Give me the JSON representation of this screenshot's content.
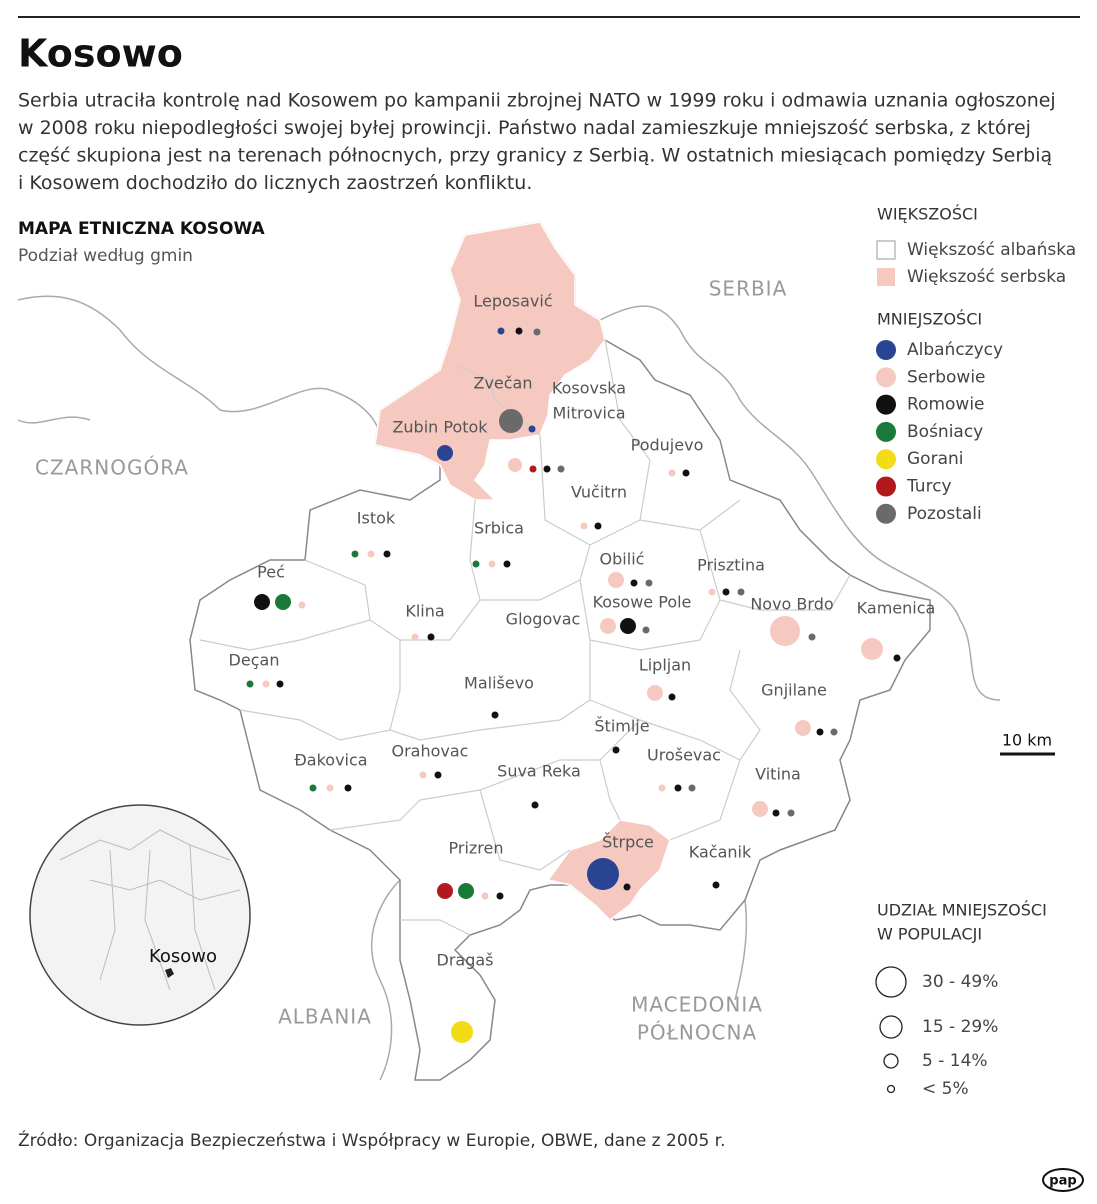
{
  "header": {
    "title": "Kosowo",
    "lead": [
      "Serbia utraciła kontrolę nad Kosowem po kampanii zbrojnej NATO w 1999 roku i odmawia uznania ogłoszonej",
      "w 2008 roku niepodległości swojej byłej prowincji. Państwo nadal zamieszkuje mniejszość serbska, z której",
      "część skupiona jest na terenach północnych, przy granicy z Serbią. W ostatnich miesiącach pomiędzy Serbią",
      "i Kosowem dochodziło do licznych zaostrzeń konfliktu."
    ]
  },
  "map": {
    "title": "MAPA ETNICZNA KOSOWA",
    "subtitle": "Podział według gmin",
    "countries": [
      [
        "SERBIA"
      ],
      [
        "CZARNOGÓRA"
      ],
      [
        "ALBANIA"
      ],
      [
        "MACEDONIA",
        "PÓŁNOCNA"
      ]
    ],
    "municipalities": [
      [
        "Leposavić"
      ],
      [
        "Zvečan"
      ],
      [
        "Kosovska",
        "Mitrovica"
      ],
      [
        "Zubin Potok"
      ],
      [
        "Podujevo"
      ],
      [
        "Istok"
      ],
      [
        "Srbica"
      ],
      [
        "Vučitrn"
      ],
      [
        "Obilić"
      ],
      [
        "Prisztina"
      ],
      [
        "Peć"
      ],
      [
        "Klina"
      ],
      [
        "Kosowe Pole"
      ],
      [
        "Novo Brdo"
      ],
      [
        "Kamenica"
      ],
      [
        "Glogovac"
      ],
      [
        "Deçan"
      ],
      [
        "Lipljan"
      ],
      [
        "Mališevo"
      ],
      [
        "Gnjilane"
      ],
      [
        "Štimlje"
      ],
      [
        "Orahovac"
      ],
      [
        "Uroševac"
      ],
      [
        "Đakovica"
      ],
      [
        "Suva Reka"
      ],
      [
        "Vitina"
      ],
      [
        "Štrpce"
      ],
      [
        "Kačanik"
      ],
      [
        "Prizren"
      ],
      [
        "Dragaš"
      ]
    ],
    "inset_label": "Kosowo",
    "scale": "10 km"
  },
  "legend": {
    "majority_title": "WIĘKSZOŚCI",
    "majorities": [
      "Większość albańska",
      "Większość serbska"
    ],
    "minority_title": "MNIEJSZOŚCI",
    "minorities": [
      "Albańczycy",
      "Serbowie",
      "Romowie",
      "Bośniacy",
      "Gorani",
      "Turcy",
      "Pozostali"
    ],
    "size_title": [
      "UDZIAŁ MNIEJSZOŚCI",
      "W POPULACJI"
    ],
    "sizes": [
      "30 - 49%",
      "15 - 29%",
      "5 - 14%",
      "< 5%"
    ]
  },
  "source": "Źródło: Organizacja Bezpieczeństwa i Współpracy w Europie, OBWE, dane z 2005 r.",
  "logo": "pap"
}
